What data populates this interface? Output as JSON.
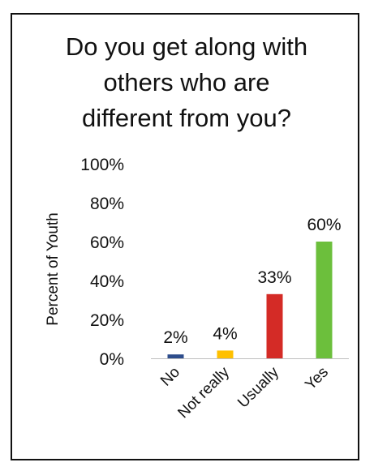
{
  "chart_data": {
    "type": "bar",
    "title_lines": [
      "Do you get along with",
      "others who are",
      "different from you?"
    ],
    "ylabel": "Percent of Youth",
    "ylim": [
      0,
      100
    ],
    "yticks": [
      0,
      20,
      40,
      60,
      80,
      100
    ],
    "ytick_labels": [
      "0%",
      "20%",
      "40%",
      "60%",
      "80%",
      "100%"
    ],
    "grid": false,
    "legend": "none",
    "categories": [
      "No",
      "Not really",
      "Usually",
      "Yes"
    ],
    "values": [
      2,
      4,
      33,
      60
    ],
    "data_labels": [
      "2%",
      "4%",
      "33%",
      "60%"
    ],
    "colors": [
      "#2e4d8c",
      "#ffc000",
      "#d42b26",
      "#6cbf3c"
    ]
  }
}
